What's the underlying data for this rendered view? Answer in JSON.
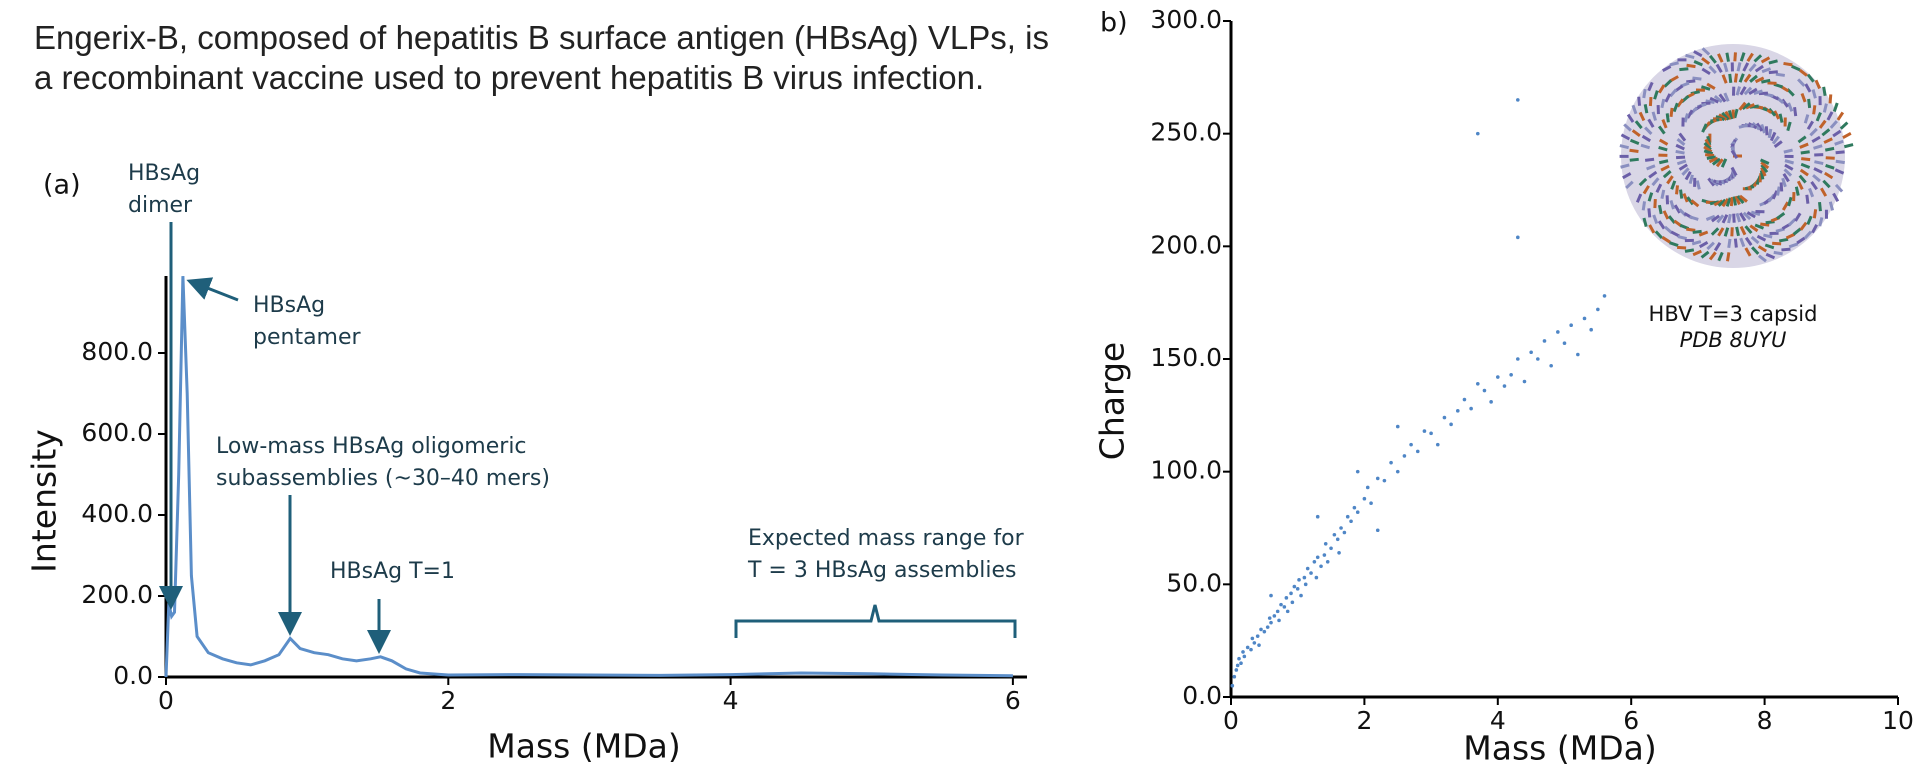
{
  "intro_text": "Engerix-B, composed of hepatitis B surface antigen (HBsAg) VLPs, is a recombinant vaccine used to prevent hepatitis B virus infection.",
  "chart_data": [
    {
      "type": "line",
      "panel_label": "(a)",
      "xlabel": "Mass (MDa)",
      "ylabel": "Intensity",
      "color": "#5b8ec9",
      "x": [
        0,
        0.02,
        0.04,
        0.06,
        0.09,
        0.12,
        0.15,
        0.18,
        0.22,
        0.3,
        0.4,
        0.5,
        0.6,
        0.7,
        0.8,
        0.88,
        0.95,
        1.05,
        1.15,
        1.25,
        1.35,
        1.45,
        1.52,
        1.6,
        1.7,
        1.8,
        2,
        2.5,
        3,
        3.5,
        4,
        4.5,
        5,
        5.5,
        6
      ],
      "values": [
        0,
        180,
        150,
        160,
        500,
        990,
        700,
        250,
        100,
        60,
        45,
        35,
        30,
        40,
        55,
        95,
        70,
        60,
        55,
        45,
        40,
        45,
        50,
        40,
        20,
        10,
        5,
        6,
        5,
        4,
        6,
        10,
        8,
        5,
        3
      ],
      "xlim": [
        0,
        6.1
      ],
      "ylim": [
        0,
        1000
      ],
      "xticks": [
        0,
        2,
        4,
        6
      ],
      "yticks": [
        {
          "value": 0,
          "label": "0.0"
        },
        {
          "value": 200,
          "label": "200.0"
        },
        {
          "value": 400,
          "label": "400.0"
        },
        {
          "value": 600,
          "label": "600.0"
        },
        {
          "value": 800,
          "label": "800.0"
        }
      ],
      "annotations": [
        {
          "lines": [
            "HBsAg",
            "dimer"
          ]
        },
        {
          "lines": [
            "HBsAg",
            "pentamer"
          ]
        },
        {
          "lines": [
            "Low-mass HBsAg oligomeric",
            "subassemblies (~30–40 mers)"
          ]
        },
        {
          "lines": [
            "HBsAg T=1"
          ]
        },
        {
          "lines": [
            "Expected mass range for",
            "T = 3 HBsAg assemblies"
          ]
        }
      ]
    },
    {
      "type": "scatter",
      "panel_label": "b)",
      "xlabel": "Mass (MDa)",
      "ylabel": "Charge",
      "color": "#4f86c6",
      "x": [
        0.02,
        0.05,
        0.08,
        0.1,
        0.12,
        0.15,
        0.18,
        0.2,
        0.25,
        0.3,
        0.32,
        0.35,
        0.4,
        0.42,
        0.45,
        0.5,
        0.55,
        0.58,
        0.6,
        0.65,
        0.7,
        0.72,
        0.75,
        0.8,
        0.83,
        0.85,
        0.9,
        0.92,
        0.95,
        1.0,
        1.02,
        1.05,
        1.1,
        1.12,
        1.15,
        1.2,
        1.25,
        1.28,
        1.3,
        1.35,
        1.4,
        1.42,
        1.45,
        1.5,
        1.55,
        1.6,
        1.62,
        1.65,
        1.7,
        1.75,
        1.8,
        1.85,
        1.9,
        2.0,
        2.05,
        2.1,
        2.2,
        2.3,
        2.4,
        2.5,
        2.6,
        2.7,
        2.8,
        2.9,
        3.0,
        3.1,
        3.2,
        3.3,
        3.4,
        3.5,
        3.6,
        3.7,
        3.8,
        3.9,
        4.0,
        4.1,
        4.2,
        4.3,
        4.4,
        4.5,
        4.6,
        4.7,
        4.8,
        4.9,
        5.0,
        5.1,
        5.2,
        5.3,
        5.4,
        5.5,
        5.6,
        2.2,
        1.3,
        0.6,
        3.7,
        4.3,
        4.3,
        2.5,
        1.9
      ],
      "values": [
        5,
        9,
        12,
        14,
        17,
        15,
        20,
        18,
        22,
        21,
        26,
        24,
        27,
        23,
        30,
        29,
        31,
        35,
        33,
        36,
        38,
        34,
        41,
        40,
        44,
        38,
        46,
        42,
        49,
        48,
        52,
        45,
        53,
        50,
        57,
        55,
        60,
        53,
        62,
        58,
        63,
        68,
        60,
        66,
        72,
        70,
        64,
        75,
        73,
        80,
        78,
        84,
        82,
        88,
        93,
        86,
        97,
        96,
        104,
        100,
        107,
        112,
        109,
        118,
        117,
        112,
        124,
        121,
        127,
        132,
        128,
        139,
        136,
        131,
        142,
        138,
        143,
        150,
        140,
        153,
        150,
        158,
        147,
        162,
        157,
        165,
        152,
        168,
        163,
        172,
        178,
        74,
        80,
        45,
        250,
        265,
        204,
        120,
        100
      ],
      "xlim": [
        0,
        10
      ],
      "ylim": [
        0,
        300
      ],
      "xticks": [
        0,
        2,
        4,
        6,
        8,
        10
      ],
      "yticks": [
        {
          "value": 0,
          "label": "0.0"
        },
        {
          "value": 50,
          "label": "50.0"
        },
        {
          "value": 100,
          "label": "100.0"
        },
        {
          "value": 150,
          "label": "150.0"
        },
        {
          "value": 200,
          "label": "200.0"
        },
        {
          "value": 250,
          "label": "250.0"
        },
        {
          "value": 300,
          "label": "300.0"
        }
      ],
      "inset_caption": [
        "HBV T=3 capsid",
        "PDB 8UYU"
      ]
    }
  ]
}
